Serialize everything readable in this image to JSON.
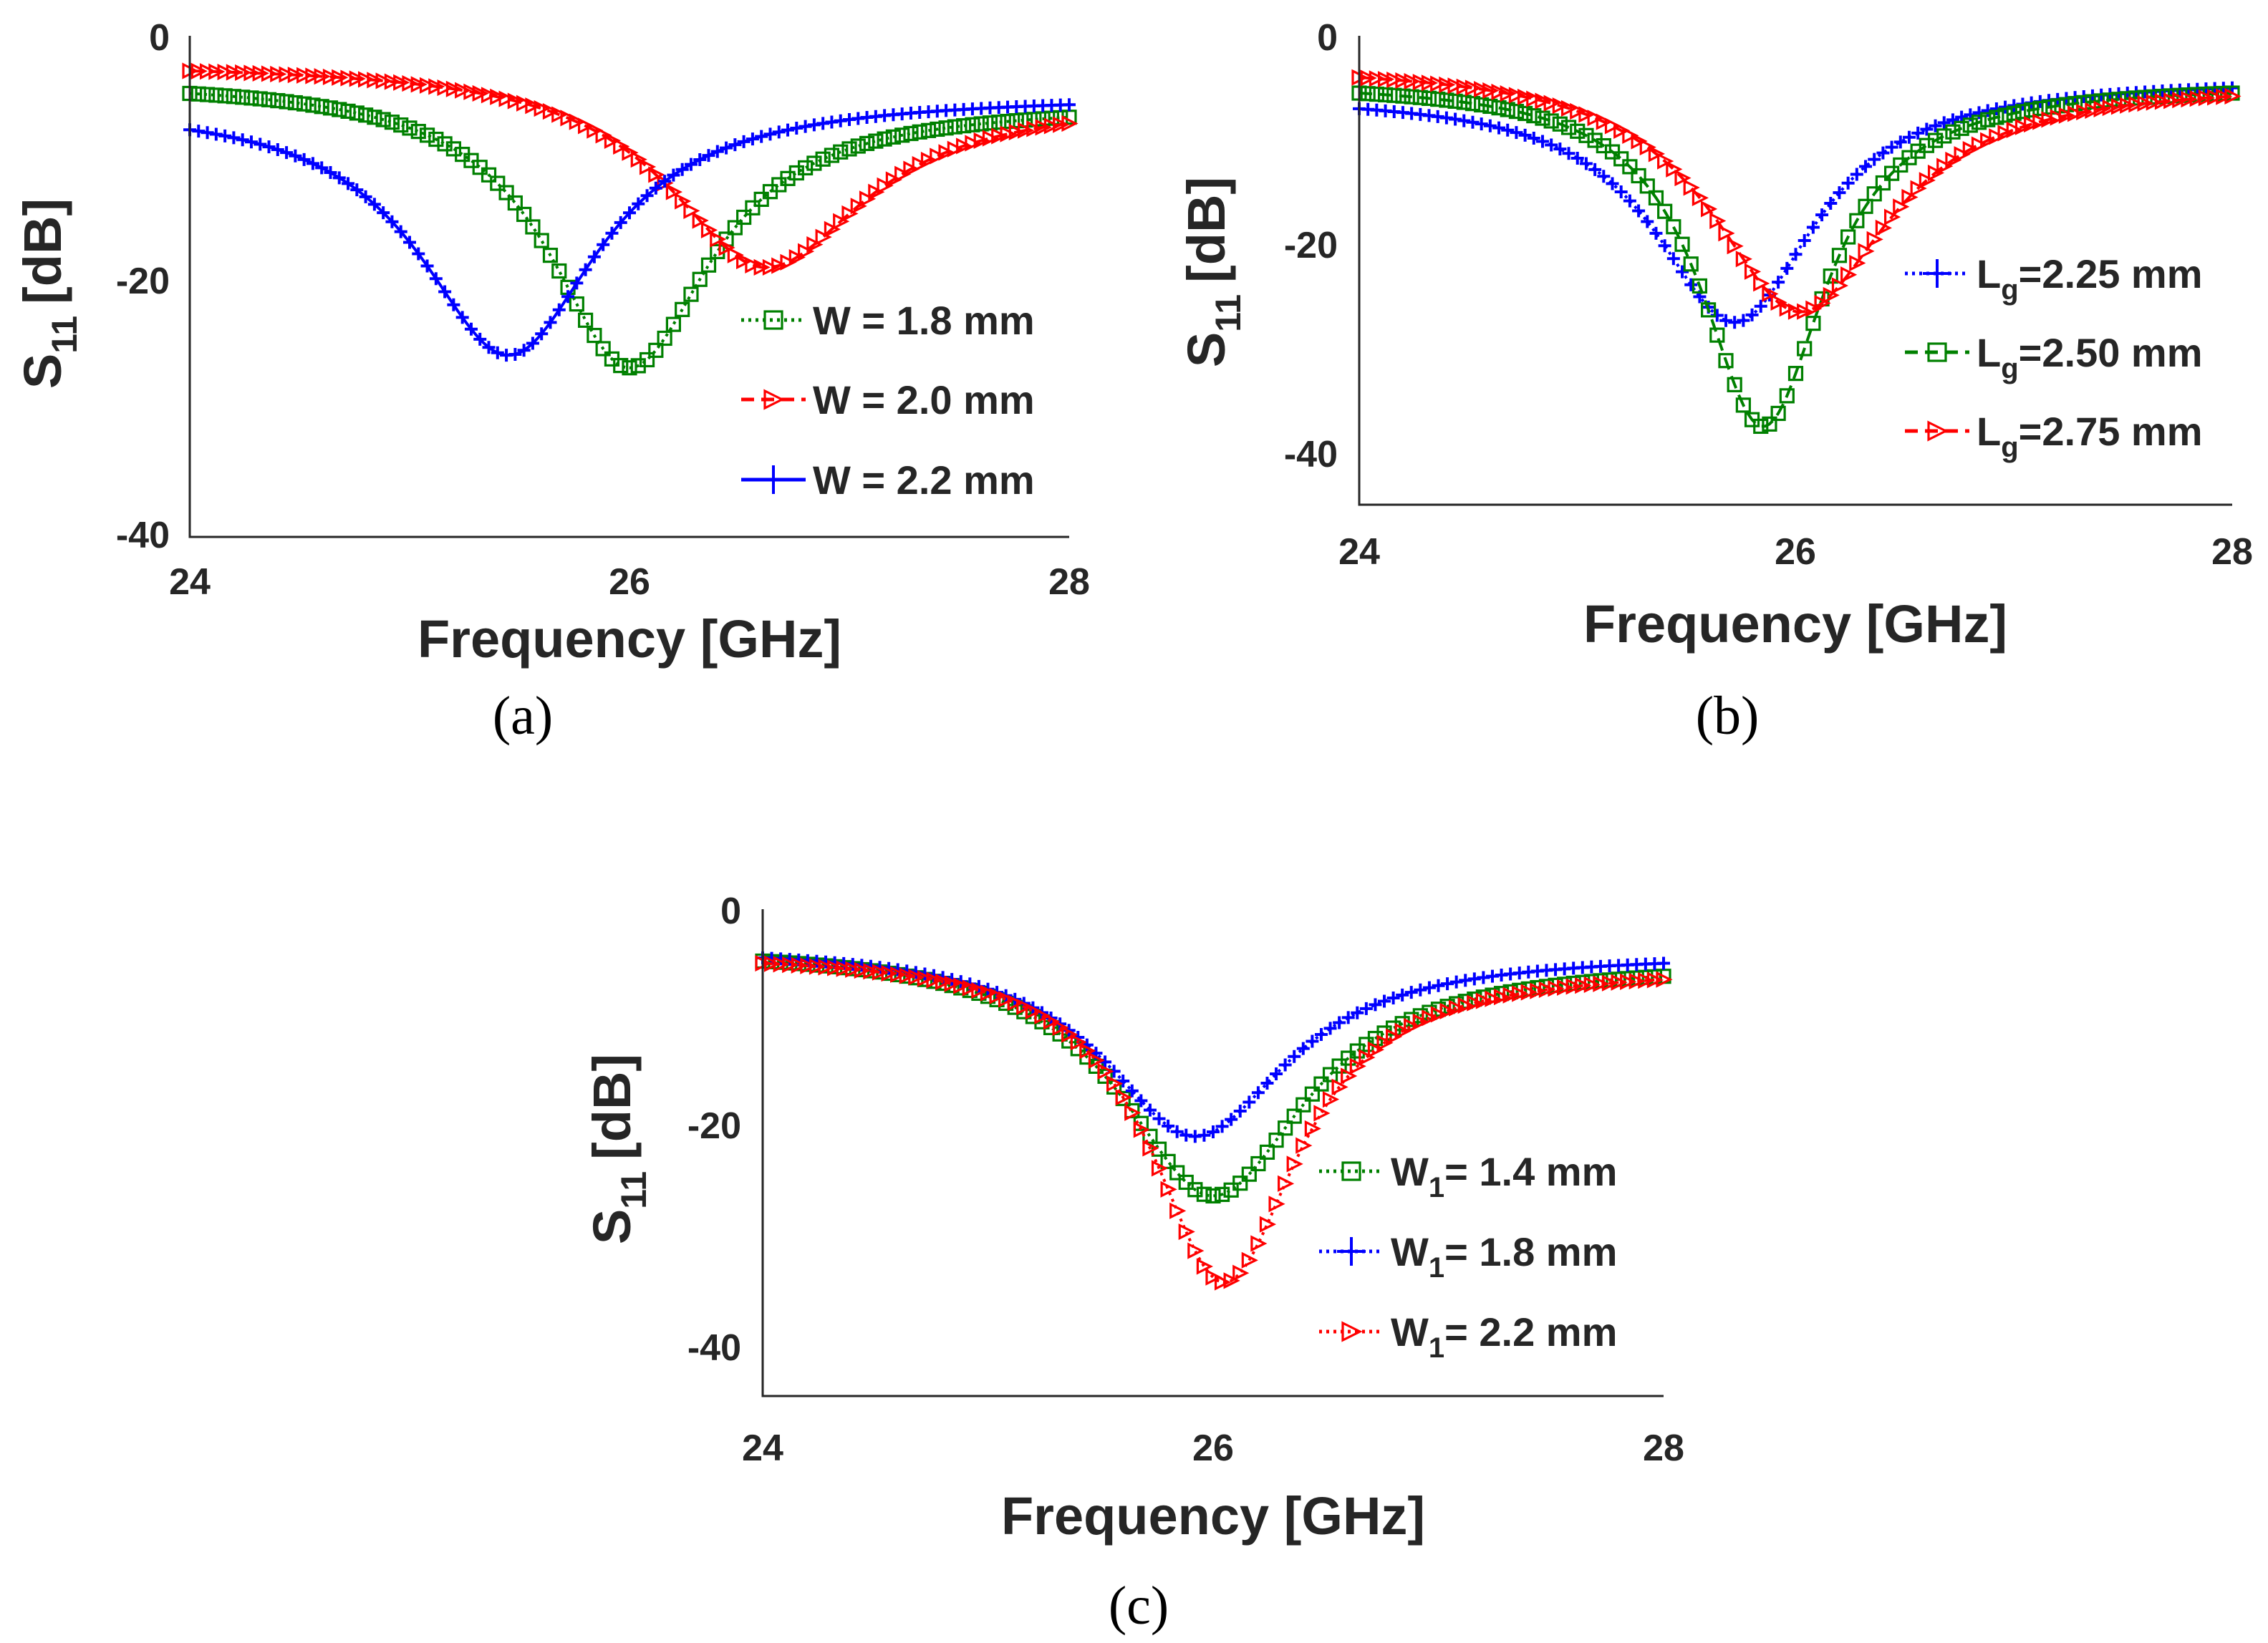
{
  "chart_data": [
    {
      "type": "line",
      "panel_label": "(a)",
      "xlabel": "Frequency [GHz]",
      "ylabel_main": "S",
      "ylabel_sub": "11",
      "ylabel_unit": "[dB]",
      "xlim": [
        24,
        28
      ],
      "ylim": [
        -40,
        0
      ],
      "xticks": [
        "24",
        "26",
        "28"
      ],
      "yticks": [
        "0",
        "-20",
        "-40"
      ],
      "grid": false,
      "legend_position": "right-middle",
      "series": [
        {
          "name": "W = 1.8 mm",
          "legend_main": "W = 1.8 mm",
          "legend_sub": "",
          "legend_tail": "",
          "color": "#008000",
          "marker": "square",
          "line": "dotted",
          "f0": 26.0,
          "min": -26.5,
          "start": -4.6,
          "end": -6.5,
          "w": 0.45
        },
        {
          "name": "W = 2.0 mm",
          "legend_main": "W = 2.0 mm",
          "legend_sub": "",
          "legend_tail": "",
          "color": "#ff0000",
          "marker": "triangle",
          "line": "dashed",
          "f0": 26.62,
          "min": -18.5,
          "start": -2.8,
          "end": -7.0,
          "w": 0.55
        },
        {
          "name": "W = 2.2 mm",
          "legend_main": "W = 2.2 mm",
          "legend_sub": "",
          "legend_tail": "",
          "color": "#0000ff",
          "marker": "plus",
          "line": "solid",
          "f0": 25.45,
          "min": -25.5,
          "start": -7.5,
          "end": -5.5,
          "w": 0.5
        }
      ]
    },
    {
      "type": "line",
      "panel_label": "(b)",
      "xlabel": "Frequency [GHz]",
      "ylabel_main": "S",
      "ylabel_sub": "11",
      "ylabel_unit": "[dB]",
      "xlim": [
        24,
        28
      ],
      "ylim": [
        -45,
        0
      ],
      "xticks": [
        "24",
        "26",
        "28"
      ],
      "yticks": [
        "0",
        "-20",
        "-40"
      ],
      "grid": false,
      "legend_position": "right-middle",
      "series": [
        {
          "name": "Lg=2.25 mm",
          "legend_main": "L",
          "legend_sub": "g",
          "legend_tail": "=2.25 mm",
          "color": "#0000ff",
          "marker": "plus",
          "line": "dotted",
          "f0": 25.72,
          "min": -27.5,
          "start": -7.0,
          "end": -5.0,
          "w": 0.45
        },
        {
          "name": "Lg=2.50 mm",
          "legend_main": "L",
          "legend_sub": "g",
          "legend_tail": "=2.50 mm",
          "color": "#008000",
          "marker": "square",
          "line": "dashed",
          "f0": 25.85,
          "min": -37.5,
          "start": -5.5,
          "end": -5.5,
          "w": 0.35
        },
        {
          "name": "Lg=2.75 mm",
          "legend_main": "L",
          "legend_sub": "g",
          "legend_tail": "=2.75 mm",
          "color": "#ff0000",
          "marker": "triangle",
          "line": "dashed",
          "f0": 26.02,
          "min": -26.5,
          "start": -4.0,
          "end": -5.8,
          "w": 0.5
        }
      ]
    },
    {
      "type": "line",
      "panel_label": "(c)",
      "xlabel": "Frequency [GHz]",
      "ylabel_main": "S",
      "ylabel_sub": "11",
      "ylabel_unit": "[dB]",
      "xlim": [
        24,
        28
      ],
      "ylim": [
        -45,
        0
      ],
      "xticks": [
        "24",
        "26",
        "28"
      ],
      "yticks": [
        "0",
        "-20",
        "-40"
      ],
      "grid": false,
      "legend_position": "right-middle",
      "series": [
        {
          "name": "W1= 1.4 mm",
          "legend_main": "W",
          "legend_sub": "1",
          "legend_tail": "= 1.4 mm",
          "color": "#008000",
          "marker": "square",
          "line": "dotted",
          "f0": 26.0,
          "min": -26.5,
          "start": -4.8,
          "end": -6.2,
          "w": 0.5
        },
        {
          "name": "W1= 1.8 mm",
          "legend_main": "W",
          "legend_sub": "1",
          "legend_tail": "= 1.8 mm",
          "color": "#0000ff",
          "marker": "plus",
          "line": "dotted",
          "f0": 25.92,
          "min": -21.0,
          "start": -4.5,
          "end": -5.0,
          "w": 0.5
        },
        {
          "name": "W1= 2.2 mm",
          "legend_main": "W",
          "legend_sub": "1",
          "legend_tail": "= 2.2 mm",
          "color": "#ff0000",
          "marker": "triangle",
          "line": "dotted",
          "f0": 26.05,
          "min": -34.5,
          "start": -5.0,
          "end": -6.5,
          "w": 0.4
        }
      ]
    }
  ]
}
